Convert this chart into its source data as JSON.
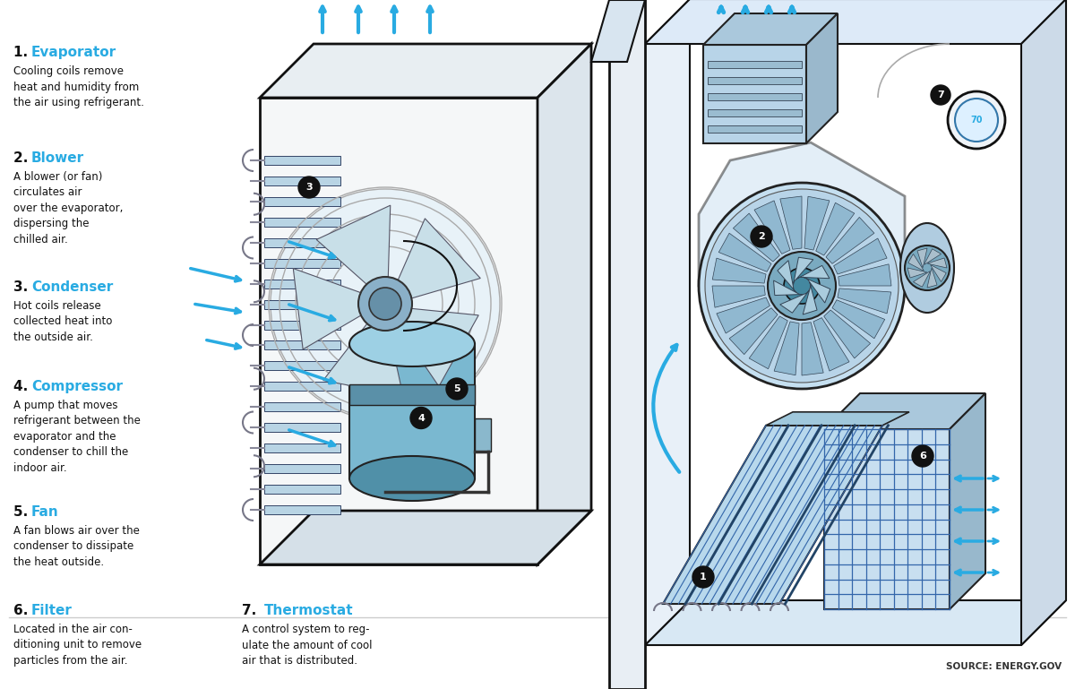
{
  "bg_color": "#ffffff",
  "blue_color": "#29abe2",
  "dark_blue": "#1a7ab5",
  "light_blue": "#c8e6f5",
  "mid_blue": "#7dc4e8",
  "very_light_blue": "#dff0fa",
  "outline_color": "#1a1a1a",
  "gray_light": "#f0f0f0",
  "gray_mid": "#cccccc",
  "source_text": "SOURCE: ENERGY.GOV",
  "labels": {
    "1": {
      "title": "Evaporator",
      "desc": "Cooling coils remove\nheat and humidity from\nthe air using refrigerant."
    },
    "2": {
      "title": "Blower",
      "desc": "A blower (or fan)\ncirculates air\nover the evaporator,\ndispersing the\nchilled air."
    },
    "3": {
      "title": "Condenser",
      "desc": "Hot coils release\ncollected heat into\nthe outside air."
    },
    "4": {
      "title": "Compressor",
      "desc": "A pump that moves\nrefrigerant between the\nevaporator and the\ncondenser to chill the\nindoor air."
    },
    "5": {
      "title": "Fan",
      "desc": "A fan blows air over the\ncondenser to dissipate\nthe heat outside."
    },
    "6": {
      "title": "Filter",
      "desc": "Located in the air con-\nditioning unit to remove\nparticles from the air."
    },
    "7": {
      "title": "Thermostat",
      "desc": "A control system to reg-\nulate the amount of cool\nair that is distributed."
    }
  }
}
